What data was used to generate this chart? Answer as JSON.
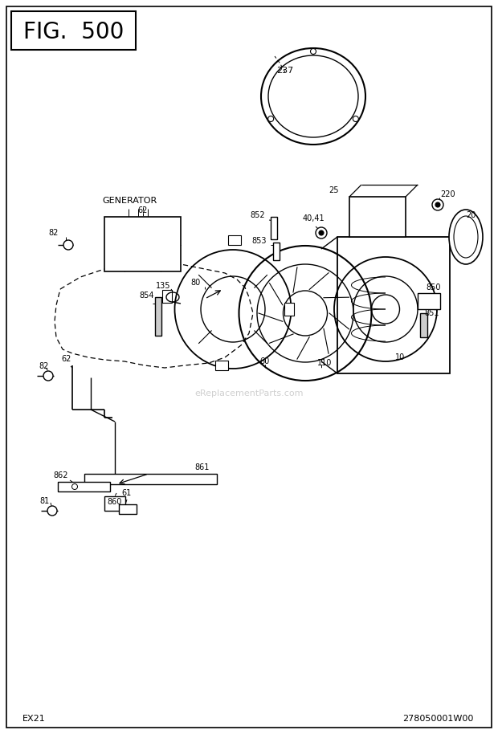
{
  "title": "FIG.  500",
  "bottom_left": "EX21",
  "bottom_right": "278050001W00",
  "watermark": "eReplacementParts.com",
  "bg_color": "#ffffff",
  "text_color": "#000000",
  "fig_width": 6.2,
  "fig_height": 9.14,
  "dpi": 100
}
